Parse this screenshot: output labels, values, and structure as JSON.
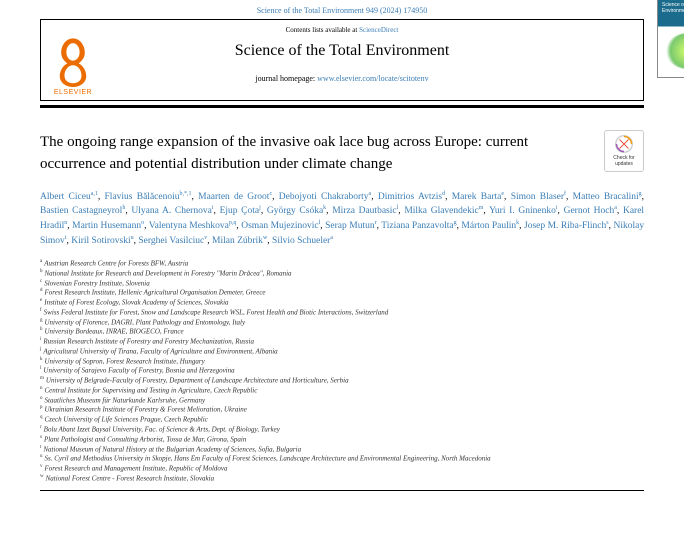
{
  "topbar": "Science of the Total Environment 949 (2024) 174950",
  "header": {
    "contents_prefix": "Contents lists available at ",
    "contents_link": "ScienceDirect",
    "journal": "Science of the Total Environment",
    "homepage_prefix": "journal homepage: ",
    "homepage_url": "www.elsevier.com/locate/scitotenv",
    "publisher": "ELSEVIER",
    "cover_overlay": "Science of the Total Environment"
  },
  "check": {
    "line1": "Check for",
    "line2": "updates"
  },
  "title": "The ongoing range expansion of the invasive oak lace bug across Europe: current occurrence and potential distribution under climate change",
  "authors": [
    {
      "n": "Albert Ciceu",
      "s": "a,1"
    },
    {
      "n": "Flavius Bălăcenoiu",
      "s": "b,*,1"
    },
    {
      "n": "Maarten de Groot",
      "s": "c"
    },
    {
      "n": "Debojyoti Chakraborty",
      "s": "a"
    },
    {
      "n": "Dimitrios Avtzis",
      "s": "d"
    },
    {
      "n": "Marek Barta",
      "s": "e"
    },
    {
      "n": "Simon Blaser",
      "s": "f"
    },
    {
      "n": "Matteo Bracalini",
      "s": "g"
    },
    {
      "n": "Bastien Castagneyrol",
      "s": "h"
    },
    {
      "n": "Ulyana A. Chernova",
      "s": "i"
    },
    {
      "n": "Ejup Çota",
      "s": "j"
    },
    {
      "n": "György Csóka",
      "s": "k"
    },
    {
      "n": "Mirza Dautbasic",
      "s": "l"
    },
    {
      "n": "Milka Glavendekic",
      "s": "m"
    },
    {
      "n": "Yuri I. Gninenko",
      "s": "i"
    },
    {
      "n": "Gernot Hoch",
      "s": "a"
    },
    {
      "n": "Karel Hradil",
      "s": "n"
    },
    {
      "n": "Martin Husemann",
      "s": "o"
    },
    {
      "n": "Valentyna Meshkova",
      "s": "p,q"
    },
    {
      "n": "Osman Mujezinovic",
      "s": "l"
    },
    {
      "n": "Serap Mutun",
      "s": "r"
    },
    {
      "n": "Tiziana Panzavolta",
      "s": "g"
    },
    {
      "n": "Márton Paulin",
      "s": "k"
    },
    {
      "n": "Josep M. Riba-Flinch",
      "s": "s"
    },
    {
      "n": "Nikolay Simov",
      "s": "t"
    },
    {
      "n": "Kiril Sotirovski",
      "s": "u"
    },
    {
      "n": "Serghei Vasilciuc",
      "s": "v"
    },
    {
      "n": "Milan Zúbrik",
      "s": "w"
    },
    {
      "n": "Silvio Schueler",
      "s": "a"
    }
  ],
  "affils": [
    {
      "s": "a",
      "t": "Austrian Research Centre for Forests BFW, Austria"
    },
    {
      "s": "b",
      "t": "National Institute for Research and Development in Forestry \"Marin Drăcea\", Romania"
    },
    {
      "s": "c",
      "t": "Slovenian Forestry Institute, Slovenia"
    },
    {
      "s": "d",
      "t": "Forest Research Institute, Hellenic Agricultural Organisation Demeter, Greece"
    },
    {
      "s": "e",
      "t": "Institute of Forest Ecology, Slovak Academy of Sciences, Slovakia"
    },
    {
      "s": "f",
      "t": "Swiss Federal Institute for Forest, Snow and Landscape Research WSL, Forest Health and Biotic Interactions, Switzerland"
    },
    {
      "s": "g",
      "t": "University of Florence, DAGRI, Plant Pathology and Entomology, Italy"
    },
    {
      "s": "h",
      "t": "University Bordeaux, INRAE, BIOGECO, France"
    },
    {
      "s": "i",
      "t": "Russian Research Institute of Forestry and Forestry Mechanization, Russia"
    },
    {
      "s": "j",
      "t": "Agricultural University of Tirana, Faculty of Agriculture and Environment, Albania"
    },
    {
      "s": "k",
      "t": "University of Sopron, Forest Research Institute, Hungary"
    },
    {
      "s": "l",
      "t": "University of Sarajevo Faculty of Forestry, Bosnia and Herzegovina"
    },
    {
      "s": "m",
      "t": "University of Belgrade-Faculty of Forestry, Department of Landscape Architecture and Horticulture, Serbia"
    },
    {
      "s": "n",
      "t": "Central Institute for Supervising and Testing in Agriculture, Czech Republic"
    },
    {
      "s": "o",
      "t": "Staatliches Museum für Naturkunde Karlsruhe, Germany"
    },
    {
      "s": "p",
      "t": "Ukrainian Research Institute of Forestry & Forest Melioration, Ukraine"
    },
    {
      "s": "q",
      "t": "Czech University of Life Sciences Prague, Czech Republic"
    },
    {
      "s": "r",
      "t": "Bolu Abant Izzet Baysal University, Fac. of Science & Arts, Dept. of Biology, Turkey"
    },
    {
      "s": "s",
      "t": "Plant Pathologist and Consulting Arborist, Tossa de Mar, Girona, Spain"
    },
    {
      "s": "t",
      "t": "National Museum of Natural History at the Bulgarian Academy of Sciences, Sofia, Bulgaria"
    },
    {
      "s": "u",
      "t": "Ss. Cyril and Methodius University in Skopje, Hans Em Faculty of Forest Sciences, Landscape Architecture and Environmental Engineering, North Macedonia"
    },
    {
      "s": "v",
      "t": "Forest Research and Management Institute, Republic of Moldova"
    },
    {
      "s": "w",
      "t": "National Forest Centre - Forest Research Institute, Slovakia"
    }
  ]
}
